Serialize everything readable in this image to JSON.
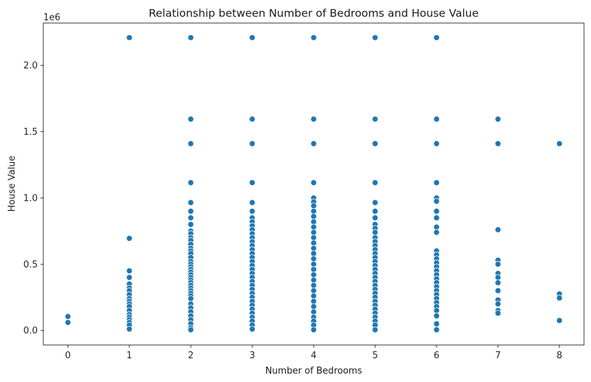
{
  "chart_data": {
    "type": "scatter",
    "title": "Relationship between Number of Bedrooms and House Value",
    "xlabel": "Number of Bedrooms",
    "ylabel": "House Value",
    "y_offset_label": "1e6",
    "xlim": [
      -0.4,
      8.4
    ],
    "ylim": [
      -110000,
      2320000
    ],
    "x_ticks": [
      0,
      1,
      2,
      3,
      4,
      5,
      6,
      7,
      8
    ],
    "y_ticks": [
      0,
      500000,
      1000000,
      1500000,
      2000000
    ],
    "y_tick_labels": [
      "0.0",
      "0.5",
      "1.0",
      "1.5",
      "2.0"
    ],
    "grid": false,
    "point_color": "#1f77b4",
    "series": [
      {
        "points": [
          {
            "x": 0,
            "y": 105000
          },
          {
            "x": 0,
            "y": 60000
          },
          {
            "x": 1,
            "y": 2210000
          },
          {
            "x": 1,
            "y": 695000
          },
          {
            "x": 1,
            "y": 450000
          },
          {
            "x": 1,
            "y": 400000
          },
          {
            "x": 1,
            "y": 350000
          },
          {
            "x": 1,
            "y": 320000
          },
          {
            "x": 1,
            "y": 300000
          },
          {
            "x": 1,
            "y": 270000
          },
          {
            "x": 1,
            "y": 240000
          },
          {
            "x": 1,
            "y": 220000
          },
          {
            "x": 1,
            "y": 200000
          },
          {
            "x": 1,
            "y": 180000
          },
          {
            "x": 1,
            "y": 150000
          },
          {
            "x": 1,
            "y": 120000
          },
          {
            "x": 1,
            "y": 100000
          },
          {
            "x": 1,
            "y": 80000
          },
          {
            "x": 1,
            "y": 60000
          },
          {
            "x": 1,
            "y": 40000
          },
          {
            "x": 1,
            "y": 10000
          },
          {
            "x": 2,
            "y": 2210000
          },
          {
            "x": 2,
            "y": 1595000
          },
          {
            "x": 2,
            "y": 1410000
          },
          {
            "x": 2,
            "y": 1115000
          },
          {
            "x": 2,
            "y": 965000
          },
          {
            "x": 2,
            "y": 900000
          },
          {
            "x": 2,
            "y": 850000
          },
          {
            "x": 2,
            "y": 800000
          },
          {
            "x": 2,
            "y": 750000
          },
          {
            "x": 2,
            "y": 730000
          },
          {
            "x": 2,
            "y": 700000
          },
          {
            "x": 2,
            "y": 680000
          },
          {
            "x": 2,
            "y": 650000
          },
          {
            "x": 2,
            "y": 620000
          },
          {
            "x": 2,
            "y": 600000
          },
          {
            "x": 2,
            "y": 580000
          },
          {
            "x": 2,
            "y": 550000
          },
          {
            "x": 2,
            "y": 520000
          },
          {
            "x": 2,
            "y": 500000
          },
          {
            "x": 2,
            "y": 480000
          },
          {
            "x": 2,
            "y": 460000
          },
          {
            "x": 2,
            "y": 440000
          },
          {
            "x": 2,
            "y": 420000
          },
          {
            "x": 2,
            "y": 400000
          },
          {
            "x": 2,
            "y": 380000
          },
          {
            "x": 2,
            "y": 360000
          },
          {
            "x": 2,
            "y": 340000
          },
          {
            "x": 2,
            "y": 320000
          },
          {
            "x": 2,
            "y": 300000
          },
          {
            "x": 2,
            "y": 280000
          },
          {
            "x": 2,
            "y": 260000
          },
          {
            "x": 2,
            "y": 240000
          },
          {
            "x": 2,
            "y": 200000
          },
          {
            "x": 2,
            "y": 170000
          },
          {
            "x": 2,
            "y": 140000
          },
          {
            "x": 2,
            "y": 110000
          },
          {
            "x": 2,
            "y": 80000
          },
          {
            "x": 2,
            "y": 50000
          },
          {
            "x": 2,
            "y": 20000
          },
          {
            "x": 2,
            "y": 5000
          },
          {
            "x": 3,
            "y": 2210000
          },
          {
            "x": 3,
            "y": 1595000
          },
          {
            "x": 3,
            "y": 1410000
          },
          {
            "x": 3,
            "y": 1115000
          },
          {
            "x": 3,
            "y": 965000
          },
          {
            "x": 3,
            "y": 900000
          },
          {
            "x": 3,
            "y": 850000
          },
          {
            "x": 3,
            "y": 820000
          },
          {
            "x": 3,
            "y": 790000
          },
          {
            "x": 3,
            "y": 760000
          },
          {
            "x": 3,
            "y": 730000
          },
          {
            "x": 3,
            "y": 700000
          },
          {
            "x": 3,
            "y": 670000
          },
          {
            "x": 3,
            "y": 640000
          },
          {
            "x": 3,
            "y": 610000
          },
          {
            "x": 3,
            "y": 580000
          },
          {
            "x": 3,
            "y": 550000
          },
          {
            "x": 3,
            "y": 520000
          },
          {
            "x": 3,
            "y": 490000
          },
          {
            "x": 3,
            "y": 460000
          },
          {
            "x": 3,
            "y": 430000
          },
          {
            "x": 3,
            "y": 400000
          },
          {
            "x": 3,
            "y": 370000
          },
          {
            "x": 3,
            "y": 340000
          },
          {
            "x": 3,
            "y": 310000
          },
          {
            "x": 3,
            "y": 280000
          },
          {
            "x": 3,
            "y": 250000
          },
          {
            "x": 3,
            "y": 220000
          },
          {
            "x": 3,
            "y": 190000
          },
          {
            "x": 3,
            "y": 160000
          },
          {
            "x": 3,
            "y": 130000
          },
          {
            "x": 3,
            "y": 100000
          },
          {
            "x": 3,
            "y": 70000
          },
          {
            "x": 3,
            "y": 40000
          },
          {
            "x": 3,
            "y": 10000
          },
          {
            "x": 4,
            "y": 2210000
          },
          {
            "x": 4,
            "y": 1595000
          },
          {
            "x": 4,
            "y": 1410000
          },
          {
            "x": 4,
            "y": 1115000
          },
          {
            "x": 4,
            "y": 1000000
          },
          {
            "x": 4,
            "y": 970000
          },
          {
            "x": 4,
            "y": 940000
          },
          {
            "x": 4,
            "y": 900000
          },
          {
            "x": 4,
            "y": 860000
          },
          {
            "x": 4,
            "y": 820000
          },
          {
            "x": 4,
            "y": 780000
          },
          {
            "x": 4,
            "y": 740000
          },
          {
            "x": 4,
            "y": 700000
          },
          {
            "x": 4,
            "y": 660000
          },
          {
            "x": 4,
            "y": 620000
          },
          {
            "x": 4,
            "y": 580000
          },
          {
            "x": 4,
            "y": 540000
          },
          {
            "x": 4,
            "y": 500000
          },
          {
            "x": 4,
            "y": 460000
          },
          {
            "x": 4,
            "y": 420000
          },
          {
            "x": 4,
            "y": 380000
          },
          {
            "x": 4,
            "y": 340000
          },
          {
            "x": 4,
            "y": 300000
          },
          {
            "x": 4,
            "y": 260000
          },
          {
            "x": 4,
            "y": 220000
          },
          {
            "x": 4,
            "y": 180000
          },
          {
            "x": 4,
            "y": 140000
          },
          {
            "x": 4,
            "y": 100000
          },
          {
            "x": 4,
            "y": 70000
          },
          {
            "x": 4,
            "y": 40000
          },
          {
            "x": 4,
            "y": 5000
          },
          {
            "x": 5,
            "y": 2210000
          },
          {
            "x": 5,
            "y": 1595000
          },
          {
            "x": 5,
            "y": 1410000
          },
          {
            "x": 5,
            "y": 1115000
          },
          {
            "x": 5,
            "y": 965000
          },
          {
            "x": 5,
            "y": 900000
          },
          {
            "x": 5,
            "y": 850000
          },
          {
            "x": 5,
            "y": 800000
          },
          {
            "x": 5,
            "y": 770000
          },
          {
            "x": 5,
            "y": 740000
          },
          {
            "x": 5,
            "y": 700000
          },
          {
            "x": 5,
            "y": 670000
          },
          {
            "x": 5,
            "y": 640000
          },
          {
            "x": 5,
            "y": 610000
          },
          {
            "x": 5,
            "y": 580000
          },
          {
            "x": 5,
            "y": 550000
          },
          {
            "x": 5,
            "y": 520000
          },
          {
            "x": 5,
            "y": 490000
          },
          {
            "x": 5,
            "y": 460000
          },
          {
            "x": 5,
            "y": 430000
          },
          {
            "x": 5,
            "y": 400000
          },
          {
            "x": 5,
            "y": 370000
          },
          {
            "x": 5,
            "y": 340000
          },
          {
            "x": 5,
            "y": 310000
          },
          {
            "x": 5,
            "y": 280000
          },
          {
            "x": 5,
            "y": 250000
          },
          {
            "x": 5,
            "y": 220000
          },
          {
            "x": 5,
            "y": 190000
          },
          {
            "x": 5,
            "y": 160000
          },
          {
            "x": 5,
            "y": 130000
          },
          {
            "x": 5,
            "y": 100000
          },
          {
            "x": 5,
            "y": 70000
          },
          {
            "x": 5,
            "y": 40000
          },
          {
            "x": 5,
            "y": 5000
          },
          {
            "x": 6,
            "y": 2210000
          },
          {
            "x": 6,
            "y": 1595000
          },
          {
            "x": 6,
            "y": 1410000
          },
          {
            "x": 6,
            "y": 1115000
          },
          {
            "x": 6,
            "y": 1000000
          },
          {
            "x": 6,
            "y": 975000
          },
          {
            "x": 6,
            "y": 900000
          },
          {
            "x": 6,
            "y": 850000
          },
          {
            "x": 6,
            "y": 780000
          },
          {
            "x": 6,
            "y": 740000
          },
          {
            "x": 6,
            "y": 600000
          },
          {
            "x": 6,
            "y": 570000
          },
          {
            "x": 6,
            "y": 540000
          },
          {
            "x": 6,
            "y": 510000
          },
          {
            "x": 6,
            "y": 480000
          },
          {
            "x": 6,
            "y": 450000
          },
          {
            "x": 6,
            "y": 420000
          },
          {
            "x": 6,
            "y": 390000
          },
          {
            "x": 6,
            "y": 360000
          },
          {
            "x": 6,
            "y": 330000
          },
          {
            "x": 6,
            "y": 300000
          },
          {
            "x": 6,
            "y": 270000
          },
          {
            "x": 6,
            "y": 240000
          },
          {
            "x": 6,
            "y": 210000
          },
          {
            "x": 6,
            "y": 180000
          },
          {
            "x": 6,
            "y": 150000
          },
          {
            "x": 6,
            "y": 110000
          },
          {
            "x": 6,
            "y": 50000
          },
          {
            "x": 6,
            "y": 5000
          },
          {
            "x": 7,
            "y": 1595000
          },
          {
            "x": 7,
            "y": 1410000
          },
          {
            "x": 7,
            "y": 760000
          },
          {
            "x": 7,
            "y": 530000
          },
          {
            "x": 7,
            "y": 500000
          },
          {
            "x": 7,
            "y": 430000
          },
          {
            "x": 7,
            "y": 400000
          },
          {
            "x": 7,
            "y": 360000
          },
          {
            "x": 7,
            "y": 300000
          },
          {
            "x": 7,
            "y": 230000
          },
          {
            "x": 7,
            "y": 200000
          },
          {
            "x": 7,
            "y": 150000
          },
          {
            "x": 7,
            "y": 130000
          },
          {
            "x": 8,
            "y": 1410000
          },
          {
            "x": 8,
            "y": 275000
          },
          {
            "x": 8,
            "y": 245000
          },
          {
            "x": 8,
            "y": 75000
          }
        ]
      }
    ]
  }
}
